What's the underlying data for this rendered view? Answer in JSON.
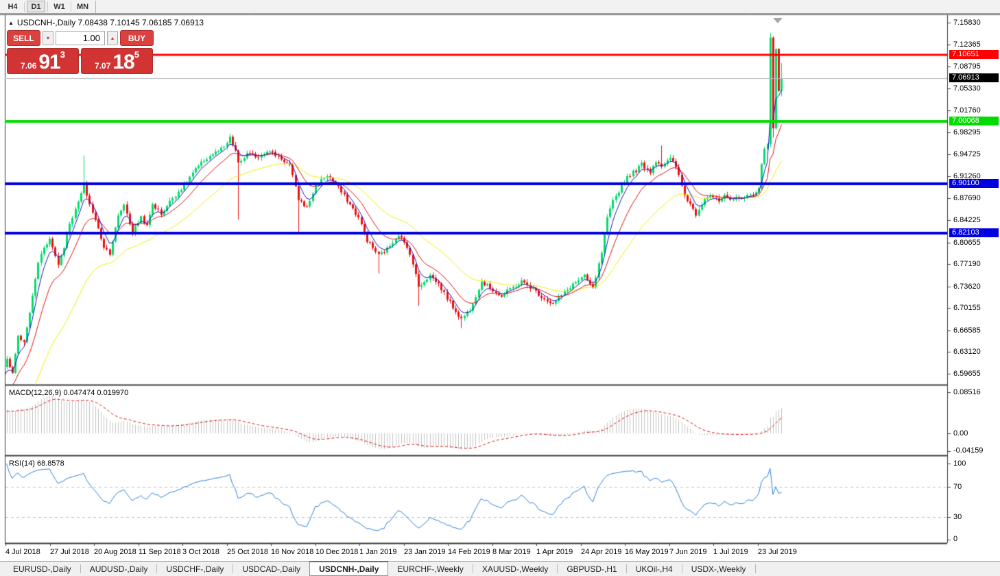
{
  "toolbar": {
    "timeframes": [
      {
        "label": "H4",
        "active": false
      },
      {
        "label": "D1",
        "active": true
      },
      {
        "label": "W1",
        "active": false
      },
      {
        "label": "MN",
        "active": false
      }
    ]
  },
  "chart": {
    "symbol_header": "USDCNH-,Daily  7.08438 7.10145 7.06185 7.06913",
    "trade_panel": {
      "sell_label": "SELL",
      "buy_label": "BUY",
      "volume": "1.00",
      "sell_price": {
        "small": "7.06",
        "big": "91",
        "sup": "3"
      },
      "buy_price": {
        "small": "7.07",
        "big": "18",
        "sup": "5"
      }
    }
  },
  "chart_data": {
    "type": "candlestick",
    "title": "USDCNH-,Daily",
    "ohlc_display": {
      "open": "7.08438",
      "high": "7.10145",
      "low": "7.06185",
      "close": "7.06913"
    },
    "colors": {
      "bull": "#00dd6b",
      "bear": "#ee1111",
      "frame": "#3c3c3c"
    },
    "price_axis": {
      "ticks": [
        "7.15830",
        "7.12365",
        "7.08795",
        "7.05330",
        "7.01760",
        "6.98295",
        "6.94725",
        "6.91260",
        "6.87690",
        "6.84225",
        "6.80655",
        "6.77190",
        "6.73620",
        "6.70155",
        "6.66585",
        "6.63120",
        "6.59655"
      ],
      "calibration": {
        "p_top": 7.1583,
        "p_bottom": 6.59655
      }
    },
    "hlines": [
      {
        "price": 7.10651,
        "label": "7.10651",
        "color": "#ff0000",
        "thickness": 3
      },
      {
        "price": 7.00068,
        "label": "7.00068",
        "color": "#00dc00",
        "thickness": 4
      },
      {
        "price": 6.901,
        "label": "6.90100",
        "color": "#0000e0",
        "thickness": 4
      },
      {
        "price": 6.82103,
        "label": "6.82103",
        "color": "#0000e0",
        "thickness": 4
      }
    ],
    "current_price": {
      "value": 7.06913,
      "label": "7.06913",
      "line_color": "#b6b6b6",
      "label_bg": "#000000"
    },
    "price": {
      "candles": 272,
      "prehistory_bars": 45,
      "seed": 7,
      "anchors": [
        [
          -45,
          6.33
        ],
        [
          -30,
          6.4
        ],
        [
          -15,
          6.5
        ],
        [
          -6,
          6.565
        ],
        [
          -1,
          6.605
        ],
        [
          0,
          6.62
        ],
        [
          2,
          6.598
        ],
        [
          4,
          6.658
        ],
        [
          6,
          6.645
        ],
        [
          9,
          6.72
        ],
        [
          11,
          6.775
        ],
        [
          13,
          6.8
        ],
        [
          15,
          6.812
        ],
        [
          18,
          6.772
        ],
        [
          20,
          6.8
        ],
        [
          22,
          6.838
        ],
        [
          24,
          6.858
        ],
        [
          27,
          6.898
        ],
        [
          29,
          6.868
        ],
        [
          31,
          6.842
        ],
        [
          34,
          6.8
        ],
        [
          36,
          6.79
        ],
        [
          39,
          6.848
        ],
        [
          41,
          6.868
        ],
        [
          44,
          6.822
        ],
        [
          47,
          6.848
        ],
        [
          49,
          6.832
        ],
        [
          51,
          6.868
        ],
        [
          54,
          6.852
        ],
        [
          58,
          6.878
        ],
        [
          62,
          6.898
        ],
        [
          65,
          6.918
        ],
        [
          69,
          6.938
        ],
        [
          72,
          6.948
        ],
        [
          76,
          6.958
        ],
        [
          78,
          6.973
        ],
        [
          80,
          6.953
        ],
        [
          81,
          6.932
        ],
        [
          84,
          6.948
        ],
        [
          88,
          6.944
        ],
        [
          91,
          6.954
        ],
        [
          95,
          6.944
        ],
        [
          99,
          6.93
        ],
        [
          102,
          6.876
        ],
        [
          105,
          6.862
        ],
        [
          108,
          6.898
        ],
        [
          112,
          6.914
        ],
        [
          115,
          6.9
        ],
        [
          119,
          6.874
        ],
        [
          123,
          6.846
        ],
        [
          126,
          6.81
        ],
        [
          130,
          6.786
        ],
        [
          133,
          6.796
        ],
        [
          137,
          6.82
        ],
        [
          141,
          6.79
        ],
        [
          144,
          6.736
        ],
        [
          148,
          6.754
        ],
        [
          151,
          6.74
        ],
        [
          155,
          6.71
        ],
        [
          159,
          6.684
        ],
        [
          162,
          6.7
        ],
        [
          166,
          6.744
        ],
        [
          169,
          6.734
        ],
        [
          173,
          6.72
        ],
        [
          176,
          6.732
        ],
        [
          180,
          6.744
        ],
        [
          184,
          6.732
        ],
        [
          187,
          6.72
        ],
        [
          191,
          6.708
        ],
        [
          194,
          6.722
        ],
        [
          198,
          6.74
        ],
        [
          202,
          6.752
        ],
        [
          205,
          6.732
        ],
        [
          208,
          6.79
        ],
        [
          210,
          6.844
        ],
        [
          212,
          6.872
        ],
        [
          215,
          6.898
        ],
        [
          217,
          6.912
        ],
        [
          220,
          6.922
        ],
        [
          222,
          6.932
        ],
        [
          225,
          6.92
        ],
        [
          227,
          6.938
        ],
        [
          229,
          6.93
        ],
        [
          232,
          6.94
        ],
        [
          234,
          6.928
        ],
        [
          237,
          6.882
        ],
        [
          239,
          6.868
        ],
        [
          241,
          6.852
        ],
        [
          244,
          6.878
        ],
        [
          246,
          6.882
        ],
        [
          249,
          6.872
        ],
        [
          251,
          6.88
        ],
        [
          253,
          6.872
        ],
        [
          256,
          6.88
        ],
        [
          258,
          6.878
        ],
        [
          260,
          6.882
        ],
        [
          263,
          6.892
        ],
        [
          264,
          6.93
        ],
        [
          265,
          6.955
        ],
        [
          266,
          6.962
        ],
        [
          267,
          7.135
        ],
        [
          268,
          6.992
        ],
        [
          269,
          7.118
        ],
        [
          270,
          7.048
        ],
        [
          271,
          7.06913
        ]
      ],
      "wick_overrides": {
        "27": {
          "h": 6.9455
        },
        "81": {
          "l": 6.843
        },
        "102": {
          "l": 6.8215
        },
        "130": {
          "l": 6.757
        },
        "144": {
          "l": 6.705
        },
        "159": {
          "l": 6.6695
        },
        "229": {
          "h": 6.9615
        },
        "267": {
          "h": 7.1421
        },
        "268": {
          "l": 6.9745
        },
        "271": {
          "h": 7.0935,
          "l": 7.0405
        }
      },
      "ma": [
        {
          "period": 34,
          "color": "#f2f200",
          "width": 1
        },
        {
          "period": 13,
          "color": "#e01010",
          "width": 1
        },
        {
          "period": 5,
          "color": "#1414c8",
          "width": 1
        }
      ]
    },
    "macd": {
      "display": "MACD(12,26,9) 0.047474 0.019970",
      "label": "MACD(12,26,9)",
      "value_main": "0.047474",
      "value_signal": "0.019970",
      "fast": 12,
      "slow": 26,
      "signal": 9,
      "axis": {
        "ticks": [
          {
            "v": 0.08516,
            "label": "0.08516"
          },
          {
            "v": 0.0,
            "label": "0.00"
          },
          {
            "v": -0.04159,
            "label": "-0.04159"
          }
        ]
      },
      "hist_color": "#c4c4c4",
      "signal_color": "#e01010"
    },
    "rsi": {
      "display": "RSI(14) 68.8578",
      "label": "RSI(14)",
      "value": "68.8578",
      "period": 14,
      "axis": {
        "ticks": [
          {
            "v": 100,
            "label": "100"
          },
          {
            "v": 70,
            "label": "70"
          },
          {
            "v": 30,
            "label": "30"
          },
          {
            "v": 0,
            "label": "0"
          }
        ]
      },
      "levels": [
        70,
        30
      ],
      "color": "#2a80d8",
      "level_color": "#c0c0c0"
    },
    "dates": [
      "4 Jul 2018",
      "27 Jul 2018",
      "20 Aug 2018",
      "11 Sep 2018",
      "3 Oct 2018",
      "25 Oct 2018",
      "16 Nov 2018",
      "10 Dec 2018",
      "1 Jan 2019",
      "23 Jan 2019",
      "14 Feb 2019",
      "8 Mar 2019",
      "1 Apr 2019",
      "24 Apr 2019",
      "16 May 2019",
      "7 Jun 2019",
      "1 Jul 2019",
      "23 Jul 2019"
    ]
  },
  "tabs": {
    "items": [
      {
        "label": "EURUSD-,Daily",
        "active": false
      },
      {
        "label": "AUDUSD-,Daily",
        "active": false
      },
      {
        "label": "USDCHF-,Daily",
        "active": false
      },
      {
        "label": "USDCAD-,Daily",
        "active": false
      },
      {
        "label": "USDCNH-,Daily",
        "active": true
      },
      {
        "label": "EURCHF-,Weekly",
        "active": false
      },
      {
        "label": "XAUUSD-,Weekly",
        "active": false
      },
      {
        "label": "GBPUSD-,H1",
        "active": false
      },
      {
        "label": "UKOil-,H4",
        "active": false
      },
      {
        "label": "USDX-,Weekly",
        "active": false
      }
    ],
    "scroll_left_icon": "◂",
    "scroll_right_icon": "▸"
  }
}
